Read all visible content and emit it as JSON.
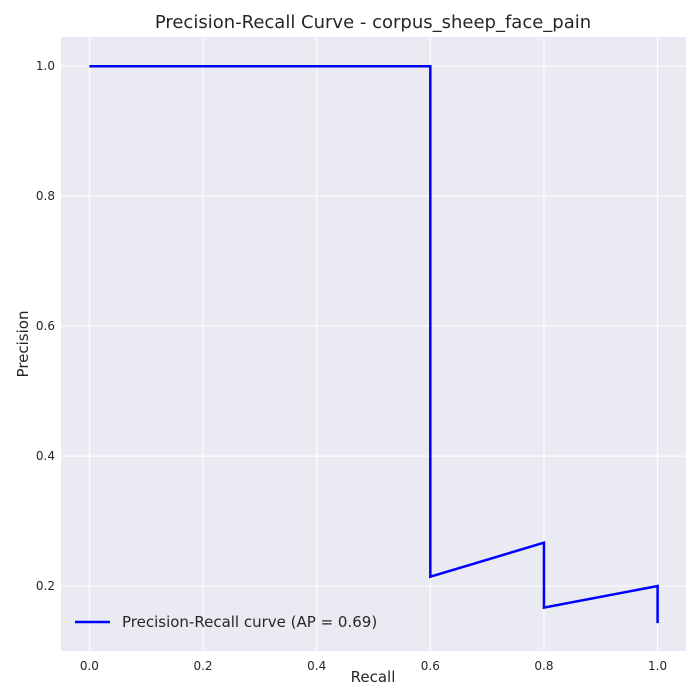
{
  "chart_data": {
    "type": "line",
    "title": "Precision-Recall Curve - corpus_sheep_face_pain",
    "xlabel": "Recall",
    "ylabel": "Precision",
    "xlim": [
      -0.05,
      1.05
    ],
    "ylim": [
      0.1,
      1.045
    ],
    "xticks": [
      0.0,
      0.2,
      0.4,
      0.6,
      0.8,
      1.0
    ],
    "xtick_labels": [
      "0.0",
      "0.2",
      "0.4",
      "0.6",
      "0.8",
      "1.0"
    ],
    "yticks": [
      0.2,
      0.4,
      0.6,
      0.8,
      1.0
    ],
    "ytick_labels": [
      "0.2",
      "0.4",
      "0.6",
      "0.8",
      "1.0"
    ],
    "grid": true,
    "legend_position": "lower-left",
    "series": [
      {
        "name": "Precision-Recall curve (AP = 0.69)",
        "color": "#0000ff",
        "points": [
          {
            "x": 0.0,
            "y": 1.0
          },
          {
            "x": 0.6,
            "y": 1.0
          },
          {
            "x": 0.6,
            "y": 0.2143
          },
          {
            "x": 0.8,
            "y": 0.2667
          },
          {
            "x": 0.8,
            "y": 0.1667
          },
          {
            "x": 1.0,
            "y": 0.2
          },
          {
            "x": 1.0,
            "y": 0.1429
          }
        ]
      }
    ],
    "colors": {
      "plot_background": "#eaeaf2",
      "grid": "#ffffff",
      "text": "#262626"
    }
  }
}
